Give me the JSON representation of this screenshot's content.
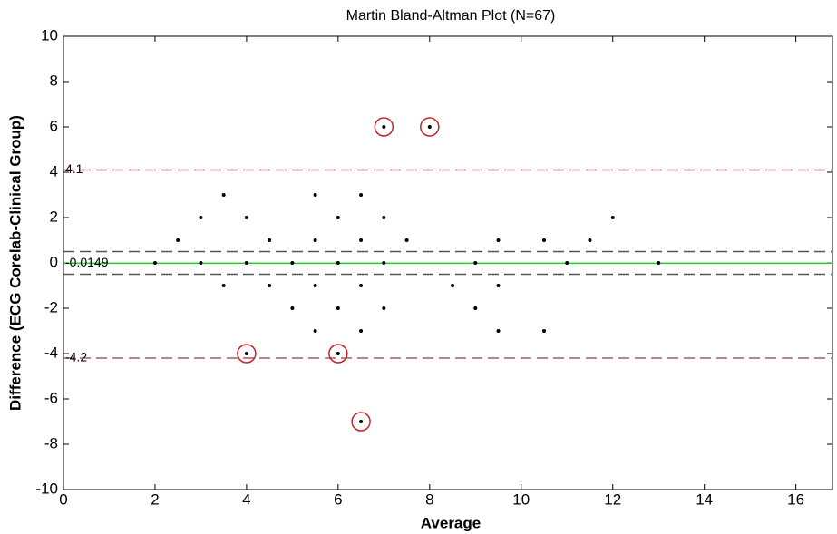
{
  "chart_data": {
    "type": "scatter",
    "title": "Martin Bland-Altman Plot (N=67)",
    "x_label": "Average",
    "y_label": "Difference (ECG Corelab-Clinical Group)",
    "xlim": [
      0,
      16.8
    ],
    "xticks": [
      0,
      2,
      4,
      6,
      8,
      10,
      12,
      14,
      16
    ],
    "ylim": [
      -10,
      10
    ],
    "yticks": [
      -10,
      -8,
      -6,
      -4,
      -2,
      0,
      2,
      4,
      6,
      8,
      10
    ],
    "series": [
      {
        "color": "#000000",
        "marker": "dot",
        "x": [
          3.5,
          5.5,
          6.5,
          3,
          4,
          6,
          7,
          12,
          2.5,
          4.5,
          5.5,
          6.5,
          7.5,
          9.5,
          10.5,
          11.5,
          2,
          3,
          4,
          5,
          6,
          7,
          9,
          11,
          13,
          3.5,
          4.5,
          5.5,
          6.5,
          8.5,
          9.5,
          5,
          6,
          7,
          9,
          5.5,
          6.5,
          9.5,
          10.5
        ],
        "values": [
          3,
          3,
          3,
          2,
          2,
          2,
          2,
          2,
          1,
          1,
          1,
          1,
          1,
          1,
          1,
          1,
          0,
          0,
          0,
          0,
          0,
          0,
          0,
          0,
          0,
          -1,
          -1,
          -1,
          -1,
          -1,
          -1,
          -2,
          -2,
          -2,
          -2,
          -3,
          -3,
          -3,
          -3
        ]
      },
      {
        "color": "#000000",
        "marker": "dot-ring",
        "ring_color": "#c0262b",
        "x": [
          7,
          8,
          4,
          6,
          6.5
        ],
        "values": [
          6,
          6,
          -4,
          -4,
          -7
        ]
      }
    ],
    "hlines": [
      {
        "value": 4.1,
        "label": "4.1",
        "color": "#9b6060",
        "dashed": true
      },
      {
        "value": 0.5,
        "color": "#555555",
        "dashed": true
      },
      {
        "value": -0.0149,
        "label": "-0.0149",
        "color": "#22cc22",
        "dashed": false
      },
      {
        "value": -0.5,
        "color": "#555555",
        "dashed": true
      },
      {
        "value": -4.2,
        "label": "-4.2",
        "color": "#9b6060",
        "dashed": true
      }
    ]
  }
}
